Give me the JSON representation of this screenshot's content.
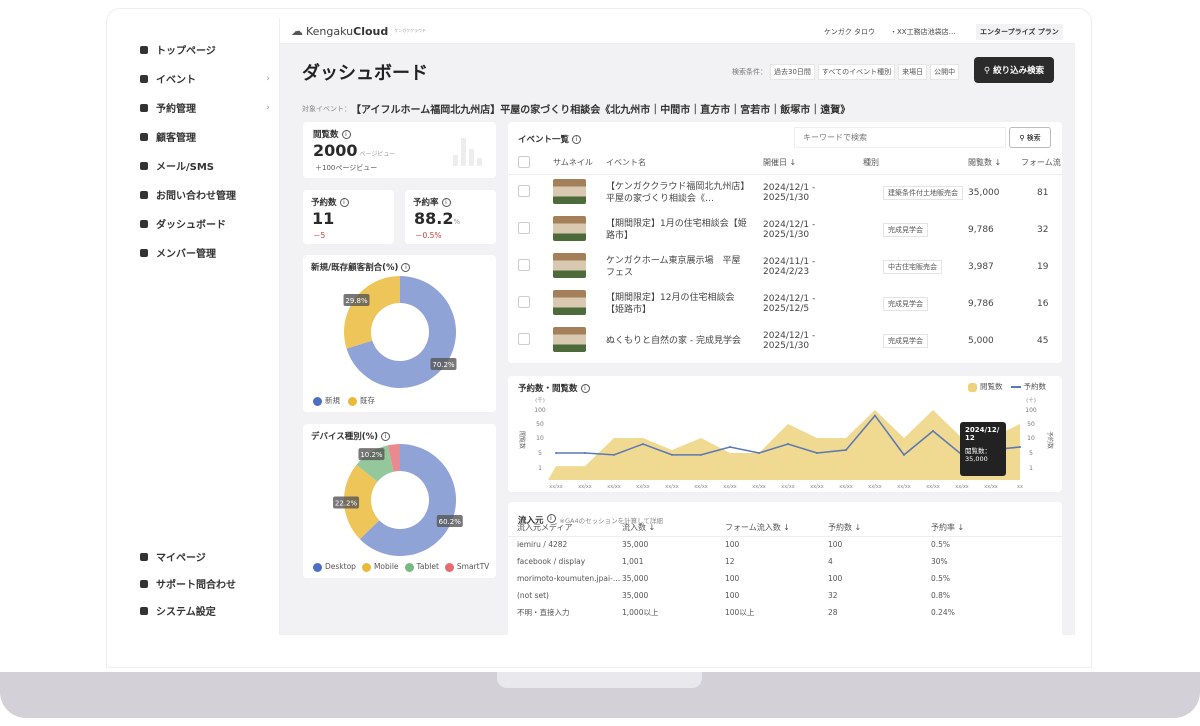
{
  "brand": {
    "name_light": "Kengaku",
    "name_bold": "Cloud",
    "kana": "ケンガククラウド"
  },
  "topbar": {
    "user": "ケンガク タロウ",
    "company": "・XX工務店池袋店…",
    "plan": "エンタープライズ プラン"
  },
  "sidebar": {
    "items": [
      {
        "label": "トップページ",
        "icon": "home-icon"
      },
      {
        "label": "イベント",
        "icon": "document-icon",
        "chevron": "›"
      },
      {
        "label": "予約管理",
        "icon": "calendar-icon",
        "chevron": "›"
      },
      {
        "label": "顧客管理",
        "icon": "users-icon"
      },
      {
        "label": "メール/SMS",
        "icon": "mail-icon"
      },
      {
        "label": "お問い合わせ管理",
        "icon": "chat-icon"
      },
      {
        "label": "ダッシュボード",
        "icon": "chart-icon"
      },
      {
        "label": "メンバー管理",
        "icon": "grid-icon"
      }
    ],
    "bottom": [
      {
        "label": "マイページ",
        "icon": "person-icon"
      },
      {
        "label": "サポート問合わせ",
        "icon": "help-icon"
      },
      {
        "label": "システム設定",
        "icon": "gear-icon"
      }
    ]
  },
  "page": {
    "title": "ダッシュボード",
    "filter_label": "検索条件：",
    "filters": [
      "過去30日間",
      "すべてのイベント種別",
      "来場日",
      "公開中"
    ],
    "search_button": "絞り込み検索",
    "target_label": "対象イベント：",
    "target_event": "【アイフルホーム福岡北九州店】平屋の家づくり相談会《北九州市｜中間市｜直方市｜宮若市｜飯塚市｜遠賀》"
  },
  "kpi": {
    "views": {
      "label": "閲覧数",
      "value": "2000",
      "unit": "ページビュー",
      "delta": "＋100ページビュー"
    },
    "reservations": {
      "label": "予約数",
      "value": "11",
      "delta": "－5"
    },
    "rate": {
      "label": "予約率",
      "value": "88.2",
      "unit": "%",
      "delta": "－0.5%"
    }
  },
  "customer_ratio": {
    "title": "新規/既存顧客割合(%)",
    "slices": [
      {
        "name": "新規",
        "value": 70.2,
        "label": "70.2%",
        "color": "#8fa3d6"
      },
      {
        "name": "既存",
        "value": 29.8,
        "label": "29.8%",
        "color": "#eec559"
      }
    ]
  },
  "device": {
    "title": "デバイス種別(%)",
    "slices": [
      {
        "name": "Desktop",
        "value": 60.2,
        "label": "60.2%",
        "color": "#8fa3d6"
      },
      {
        "name": "Mobile",
        "value": 22.2,
        "label": "22.2%",
        "color": "#eec559"
      },
      {
        "name": "Tablet",
        "value": 10.2,
        "label": "10.2%",
        "color": "#95c79c"
      },
      {
        "name": "SmartTV",
        "value": 3.4,
        "label": "",
        "color": "#e88a8f"
      }
    ],
    "legend_colors": [
      "#4a6fc4",
      "#e9b938",
      "#7ab883",
      "#e56b71"
    ]
  },
  "events": {
    "title": "イベント一覧",
    "search_placeholder": "キーワードで検索",
    "search_button": "検索",
    "columns": [
      "サムネイル",
      "イベント名",
      "開催日 ↓",
      "種別",
      "閲覧数 ↓",
      "フォーム流"
    ],
    "rows": [
      {
        "name": "【ケンガククラウド福岡北九州店】平屋の家づくり相談会《…",
        "date": "2024/12/1 - 2025/1/30",
        "type": "建築条件付土地販売会",
        "views": "35,000",
        "form": "81"
      },
      {
        "name": "【期間限定】1月の住宅相談会【姫路市】",
        "date": "2024/12/1 - 2025/1/30",
        "type": "完成見学会",
        "views": "9,786",
        "form": "32"
      },
      {
        "name": "ケンガクホーム東京展示場　平屋フェス",
        "date": "2024/11/1 - 2024/2/23",
        "type": "中古住宅販売会",
        "views": "3,987",
        "form": "19"
      },
      {
        "name": "【期間限定】12月の住宅相談会【姫路市】",
        "date": "2024/12/1 - 2025/12/5",
        "type": "完成見学会",
        "views": "9,786",
        "form": "16"
      },
      {
        "name": "ぬくもりと自然の家 - 完成見学会",
        "date": "2024/12/1 - 2025/1/30",
        "type": "完成見学会",
        "views": "5,000",
        "form": "45"
      }
    ]
  },
  "chart_data": {
    "type": "area+line",
    "title": "予約数・閲覧数",
    "categories": [
      "xx/xx",
      "xx/xx",
      "xx/xx",
      "xx/xx",
      "xx/xx",
      "xx/xx",
      "xx/xx",
      "xx/xx",
      "xx/xx",
      "xx/xx",
      "xx/xx",
      "xx/xx",
      "xx/xx",
      "xx/xx",
      "xx/xx",
      "xx/xx",
      "xx"
    ],
    "left_axis": {
      "label": "閲覧数",
      "unit": "(千)",
      "ticks": [
        100,
        50,
        10,
        5,
        1
      ]
    },
    "right_axis": {
      "label": "予約数",
      "unit": "(十)",
      "ticks": [
        100,
        50,
        10,
        5,
        1
      ]
    },
    "series": [
      {
        "name": "閲覧数",
        "kind": "area",
        "color": "#edd27e",
        "values": [
          1.5,
          1.5,
          10,
          10,
          6,
          10,
          5,
          5,
          50,
          10,
          10,
          100,
          10,
          100,
          10,
          10,
          50
        ]
      },
      {
        "name": "予約数",
        "kind": "line",
        "color": "#5a78b5",
        "values": [
          5,
          5,
          4.5,
          8,
          4.5,
          4.5,
          7,
          5,
          8,
          5,
          6,
          80,
          4.5,
          30,
          4.5,
          6,
          7
        ]
      }
    ],
    "legend": "top-right",
    "tooltip": {
      "date": "2024/12/12",
      "label": "閲覧数：",
      "value": "35,000"
    }
  },
  "sources": {
    "title": "流入元",
    "note": "※GA4のセッションを計算して詳細",
    "columns": [
      "流入元メディア",
      "流入数 ↓",
      "フォーム流入数 ↓",
      "予約数 ↓",
      "予約率 ↓"
    ],
    "rows": [
      [
        "iemiru / 4282",
        "35,000",
        "100",
        "100",
        "0.5%"
      ],
      [
        "facebook / display",
        "1,001",
        "12",
        "4",
        "30%"
      ],
      [
        "morimoto-koumuten.jpai-…",
        "35,000",
        "100",
        "100",
        "0.5%"
      ],
      [
        "(not set)",
        "35,000",
        "100",
        "32",
        "0.8%"
      ],
      [
        "不明・直接入力",
        "1,000以上",
        "100以上",
        "28",
        "0.24%"
      ]
    ]
  }
}
